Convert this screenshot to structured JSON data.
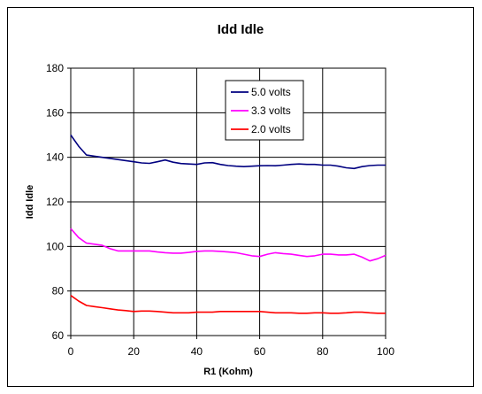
{
  "chart_data": {
    "type": "line",
    "title": "Idd Idle",
    "xlabel": "R1 (Kohm)",
    "ylabel": "Idd Idle",
    "xlim": [
      0,
      100
    ],
    "ylim": [
      60,
      180
    ],
    "xticks": [
      0,
      20,
      40,
      60,
      80,
      100
    ],
    "yticks": [
      60,
      80,
      100,
      120,
      140,
      160,
      180
    ],
    "grid": true,
    "legend_position": "top-right",
    "x": [
      0,
      2.5,
      5,
      7.5,
      10,
      12.5,
      15,
      17.5,
      20,
      22.5,
      25,
      27.5,
      30,
      32.5,
      35,
      37.5,
      40,
      42.5,
      45,
      47.5,
      50,
      52.5,
      55,
      57.5,
      60,
      62.5,
      65,
      67.5,
      70,
      72.5,
      75,
      77.5,
      80,
      82.5,
      85,
      87.5,
      90,
      92.5,
      95,
      97.5,
      100
    ],
    "series": [
      {
        "name": "5.0 volts",
        "color": "#000080",
        "values": [
          150,
          145,
          141,
          140.5,
          140,
          139.5,
          139,
          138.5,
          138,
          137.5,
          137.3,
          138,
          138.8,
          137.8,
          137.2,
          137,
          136.8,
          137.5,
          137.6,
          136.8,
          136.3,
          136,
          135.8,
          136,
          136.2,
          136.3,
          136.2,
          136.5,
          136.8,
          137,
          136.8,
          136.8,
          136.5,
          136.5,
          136,
          135.3,
          135,
          135.8,
          136.3,
          136.5,
          136.5
        ]
      },
      {
        "name": "3.3 volts",
        "color": "#ff00ff",
        "values": [
          108,
          104,
          101.5,
          101,
          100.5,
          99,
          98,
          98,
          98,
          98,
          98,
          97.5,
          97.2,
          97,
          97,
          97.3,
          97.8,
          98,
          98,
          97.8,
          97.5,
          97.2,
          96.5,
          95.8,
          95.5,
          96.5,
          97.2,
          96.8,
          96.5,
          96,
          95.5,
          95.8,
          96.5,
          96.5,
          96.2,
          96.2,
          96.5,
          95.2,
          93.5,
          94.5,
          96
        ]
      },
      {
        "name": "2.0 volts",
        "color": "#ff0000",
        "values": [
          78,
          75.5,
          73.5,
          73,
          72.5,
          72,
          71.5,
          71.2,
          70.8,
          71,
          71,
          70.8,
          70.5,
          70.2,
          70.2,
          70.2,
          70.5,
          70.5,
          70.5,
          70.8,
          70.8,
          70.8,
          70.8,
          70.8,
          70.8,
          70.5,
          70.2,
          70.2,
          70.2,
          70,
          70,
          70.2,
          70.2,
          70,
          70,
          70.2,
          70.5,
          70.5,
          70.2,
          70,
          70
        ]
      }
    ]
  }
}
